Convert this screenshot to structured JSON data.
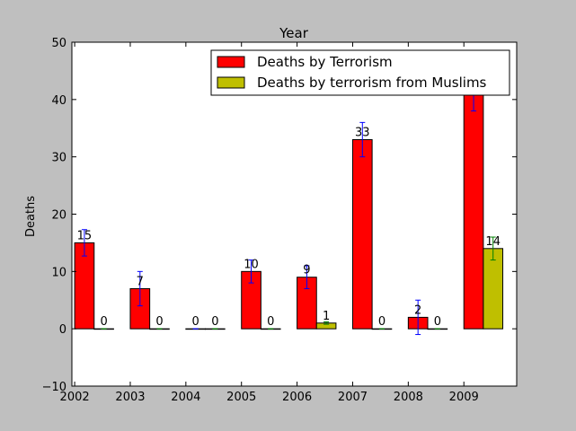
{
  "chart_data": {
    "type": "bar",
    "title": "Year",
    "xlabel": "",
    "ylabel": "Deaths",
    "ylim": [
      -10,
      50
    ],
    "yticks": [
      -10,
      0,
      10,
      20,
      30,
      40,
      50
    ],
    "categories": [
      "2002",
      "2003",
      "2004",
      "2005",
      "2006",
      "2007",
      "2008",
      "2009"
    ],
    "grid": false,
    "legend_position": "top-right",
    "series": [
      {
        "name": "Deaths by Terrorism",
        "color": "#ff0000",
        "error_color": "#0000ff",
        "values": [
          15,
          7,
          0,
          10,
          9,
          33,
          2,
          41
        ],
        "errors": [
          2.3,
          3,
          0,
          2,
          2,
          3,
          3,
          3
        ],
        "labels": [
          "15",
          "7",
          "0",
          "10",
          "9",
          "33",
          "2",
          ""
        ]
      },
      {
        "name": "Deaths by terrorism from Muslims",
        "color": "#bfbf00",
        "error_color": "#008000",
        "values": [
          0,
          0,
          0,
          0,
          1,
          0,
          0,
          14
        ],
        "errors": [
          0,
          0,
          0,
          0,
          0.2,
          0,
          0,
          2
        ],
        "labels": [
          "0",
          "0",
          "0",
          "0",
          "1",
          "0",
          "0",
          "14"
        ]
      }
    ]
  }
}
